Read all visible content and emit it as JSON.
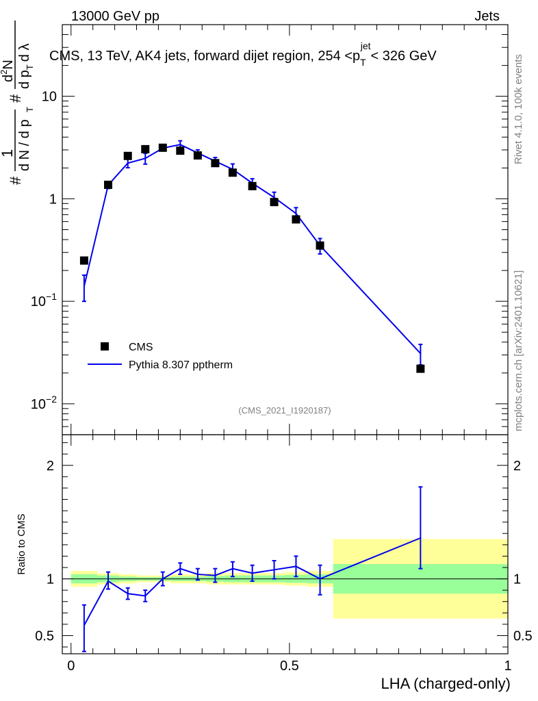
{
  "header": {
    "left_label": "13000 GeV pp",
    "right_label": "Jets"
  },
  "side_labels": {
    "rivet": "Rivet 4.1.0,  100k events",
    "mcplots": "mcplots.cern.ch [arXiv:2401.10621]"
  },
  "chart_data": [
    {
      "type": "scatter",
      "panel": "main",
      "title": "CMS, 13 TeV, AK4 jets, forward dijet region, 254 <p_T^{jet}< 326 GeV",
      "title_parts": [
        "CMS, 13 TeV, AK4 jets, forward dijet region, 254 <p",
        "T",
        "jet",
        "< 326 GeV"
      ],
      "ylabel": "1/dN/dp_T  d^2N/dp_T dλ",
      "ylabel_parts": {
        "frac1": "1",
        "frac1_den": "d N / d p",
        "frac2_num": "d",
        "frac2_num_sup": "2",
        "frac2_num_rest": "N",
        "frac2_den": "d p",
        "frac2_den_rest": "d λ",
        "sub": "T",
        "hash": "#"
      },
      "yscale": "log",
      "ylim": [
        0.005,
        50
      ],
      "xlim": [
        -0.02,
        1.0
      ],
      "yticks": [
        {
          "value": 0.01,
          "base": "10",
          "exp": "−2"
        },
        {
          "value": 0.1,
          "base": "10",
          "exp": "−1"
        },
        {
          "value": 1,
          "label": "1"
        },
        {
          "value": 10,
          "label": "10"
        }
      ],
      "watermark": "(CMS_2021_I1920187)",
      "legend": [
        {
          "name": "CMS",
          "marker": "square",
          "color": "#000000"
        },
        {
          "name": "Pythia 8.307 pptherm",
          "marker": "line",
          "color": "#0000ee"
        }
      ],
      "series": [
        {
          "name": "CMS",
          "color": "#000000",
          "x": [
            0.03,
            0.085,
            0.13,
            0.17,
            0.21,
            0.25,
            0.29,
            0.33,
            0.37,
            0.415,
            0.465,
            0.515,
            0.57,
            0.8
          ],
          "y": [
            0.25,
            1.37,
            2.62,
            3.05,
            3.15,
            2.95,
            2.65,
            2.23,
            1.8,
            1.33,
            0.93,
            0.63,
            0.35,
            0.022
          ]
        },
        {
          "name": "Pythia 8.307 pptherm",
          "color": "#0000ee",
          "x": [
            0.03,
            0.085,
            0.13,
            0.17,
            0.21,
            0.25,
            0.29,
            0.33,
            0.37,
            0.415,
            0.465,
            0.515,
            0.57,
            0.8
          ],
          "y": [
            0.14,
            1.36,
            2.23,
            2.48,
            3.12,
            3.38,
            2.8,
            2.33,
            1.94,
            1.42,
            1.03,
            0.72,
            0.35,
            0.031
          ],
          "yerr": [
            0.04,
            0.1,
            0.22,
            0.3,
            0.15,
            0.3,
            0.2,
            0.2,
            0.25,
            0.15,
            0.13,
            0.1,
            0.06,
            0.007
          ]
        }
      ]
    },
    {
      "type": "line",
      "panel": "ratio",
      "ylabel": "Ratio to CMS",
      "xlabel": "LHA (charged-only)",
      "yscale": "linear",
      "ylim": [
        0.34,
        2.27
      ],
      "xlim": [
        -0.02,
        1.0
      ],
      "yticks": [
        0.5,
        1,
        2
      ],
      "ytick_labels": [
        "0.5",
        "1",
        "2"
      ],
      "xticks": [
        0,
        0.5,
        1
      ],
      "xtick_labels": [
        "0",
        "0.5",
        "1"
      ],
      "reference_line": 1,
      "bands": {
        "bin_edges": [
          0.0,
          0.06,
          0.11,
          0.15,
          0.19,
          0.23,
          0.27,
          0.31,
          0.35,
          0.39,
          0.44,
          0.49,
          0.54,
          0.6,
          1.0
        ],
        "yellow_half_width": [
          0.07,
          0.05,
          0.04,
          0.03,
          0.03,
          0.04,
          0.04,
          0.05,
          0.05,
          0.05,
          0.05,
          0.06,
          0.07,
          0.35
        ],
        "green_half_width": [
          0.04,
          0.03,
          0.02,
          0.015,
          0.015,
          0.02,
          0.02,
          0.025,
          0.03,
          0.03,
          0.03,
          0.035,
          0.04,
          0.13
        ],
        "yellow_color": "#ffff99",
        "green_color": "#99ff99"
      },
      "series": [
        {
          "name": "Pythia 8.307 pptherm",
          "color": "#0000ee",
          "x": [
            0.03,
            0.085,
            0.13,
            0.17,
            0.21,
            0.25,
            0.29,
            0.33,
            0.37,
            0.415,
            0.465,
            0.515,
            0.57,
            0.8
          ],
          "y": [
            0.59,
            0.98,
            0.87,
            0.85,
            1.0,
            1.09,
            1.04,
            1.03,
            1.09,
            1.05,
            1.08,
            1.11,
            1.0,
            1.36
          ],
          "yerr_low": [
            0.23,
            0.07,
            0.05,
            0.05,
            0.06,
            0.05,
            0.05,
            0.06,
            0.07,
            0.07,
            0.08,
            0.09,
            0.14,
            0.27
          ],
          "yerr_high": [
            0.18,
            0.08,
            0.05,
            0.05,
            0.06,
            0.05,
            0.05,
            0.06,
            0.06,
            0.07,
            0.08,
            0.09,
            0.12,
            0.45
          ]
        }
      ]
    }
  ]
}
